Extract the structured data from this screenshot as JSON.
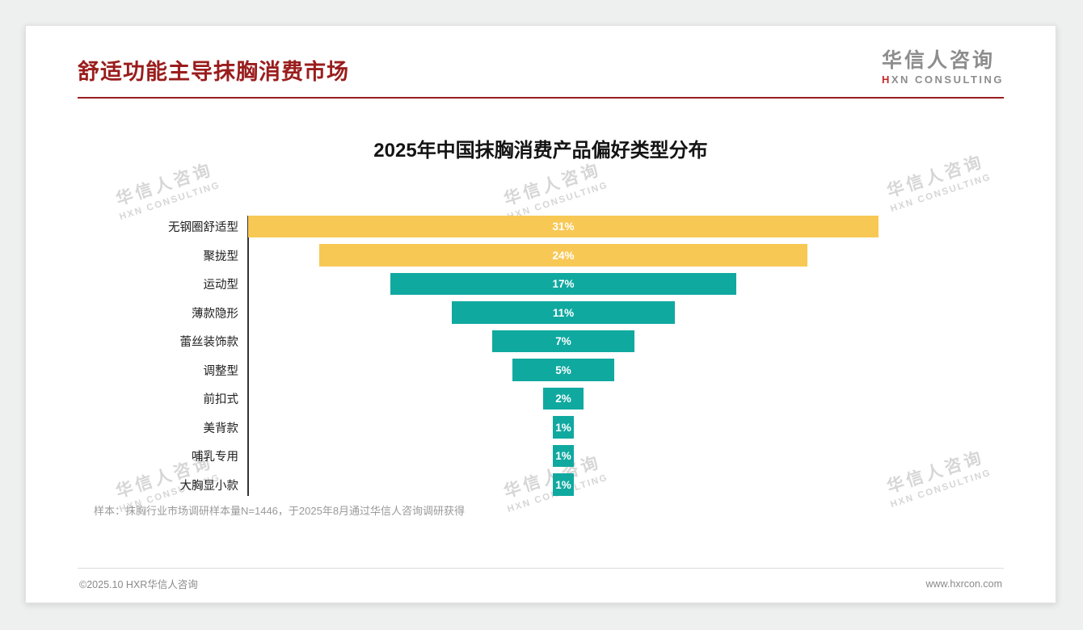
{
  "page": {
    "title": "舒适功能主导抹胸消费市场",
    "sample_note": "样本：抹胸行业市场调研样本量N=1446，于2025年8月通过华信人咨询调研获得",
    "footer_left": "©2025.10 HXR华信人咨询",
    "footer_right": "www.hxrcon.com"
  },
  "logo": {
    "cn": "华信人咨询",
    "en": "HXN CONSULTING"
  },
  "watermark": {
    "line1": "华信人咨询",
    "line2": "HXN CONSULTING"
  },
  "colors": {
    "title_red": "#9A1D1D",
    "bar_yellow": "#F8C855",
    "bar_teal": "#10A9A0",
    "axis": "#333333"
  },
  "chart_data": {
    "type": "bar",
    "variant": "horizontal-centered-funnel",
    "title": "2025年中国抹胸消费产品偏好类型分布",
    "categories": [
      "无钢圈舒适型",
      "聚拢型",
      "运动型",
      "薄款隐形",
      "蕾丝装饰款",
      "调整型",
      "前扣式",
      "美背款",
      "哺乳专用",
      "大胸显小款"
    ],
    "values": [
      31,
      24,
      17,
      11,
      7,
      5,
      2,
      1,
      1,
      1
    ],
    "labels": [
      "31%",
      "24%",
      "17%",
      "11%",
      "7%",
      "5%",
      "2%",
      "1%",
      "1%",
      "1%"
    ],
    "colors": [
      "#F8C855",
      "#F8C855",
      "#10A9A0",
      "#10A9A0",
      "#10A9A0",
      "#10A9A0",
      "#10A9A0",
      "#10A9A0",
      "#10A9A0",
      "#10A9A0"
    ],
    "unit": "%",
    "xmax": 31,
    "value_labels_inside": true,
    "grid": false,
    "legend": false
  }
}
